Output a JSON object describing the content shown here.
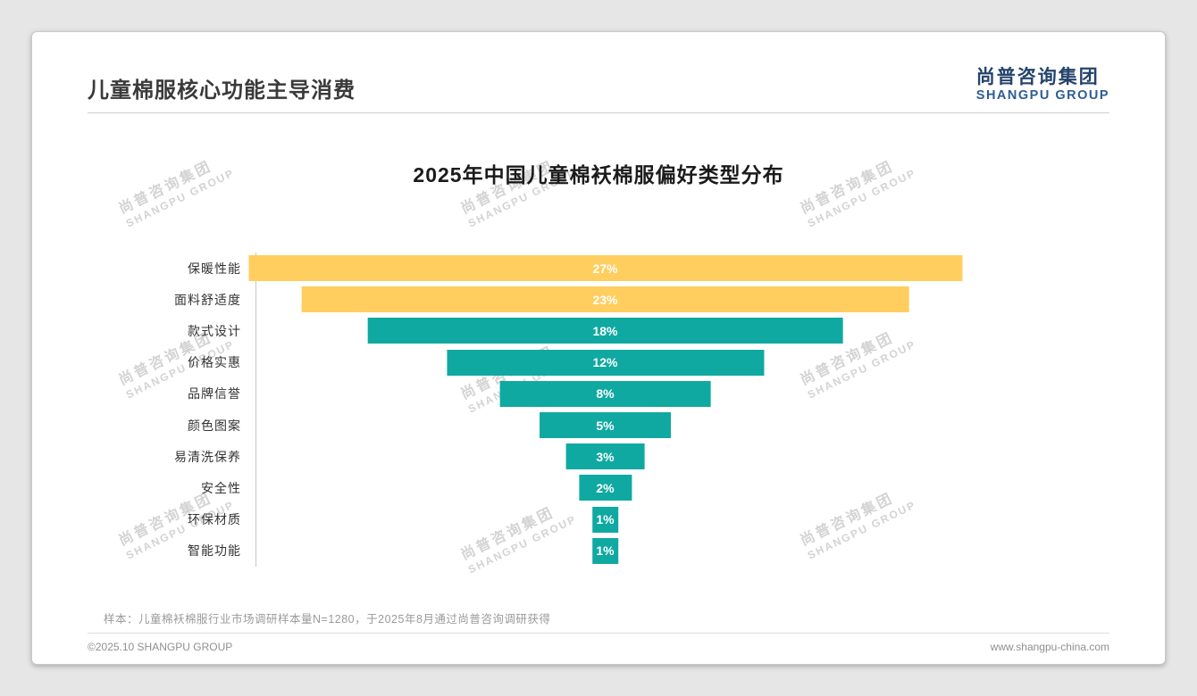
{
  "page": {
    "title": "儿童棉服核心功能主导消费",
    "logo": {
      "cn": "尚普咨询集团",
      "en": "SHANGPU GROUP"
    },
    "sample_note": "样本：儿童棉袄棉服行业市场调研样本量N=1280，于2025年8月通过尚普咨询调研获得",
    "footer_left": "©2025.10 SHANGPU GROUP",
    "footer_right": "www.shangpu-china.com"
  },
  "watermark": {
    "cn": "尚普咨询集团",
    "en": "SHANGPU GROUP"
  },
  "chart_data": {
    "type": "bar",
    "variant": "centered-horizontal-funnel",
    "title": "2025年中国儿童棉袄棉服偏好类型分布",
    "categories": [
      "保暖性能",
      "面料舒适度",
      "款式设计",
      "价格实惠",
      "品牌信誉",
      "颜色图案",
      "易清洗保养",
      "安全性",
      "环保材质",
      "智能功能"
    ],
    "values": [
      27,
      23,
      18,
      12,
      8,
      5,
      3,
      2,
      1,
      1
    ],
    "value_labels": [
      "27%",
      "23%",
      "18%",
      "12%",
      "8%",
      "5%",
      "3%",
      "2%",
      "1%",
      "1%"
    ],
    "xlim": [
      0,
      27
    ],
    "highlight_count": 2,
    "colors": {
      "highlight": "#FFCE5E",
      "default": "#0FA9A1",
      "value_text": "#FFFFFF"
    },
    "legend": "none",
    "grid": "off"
  }
}
